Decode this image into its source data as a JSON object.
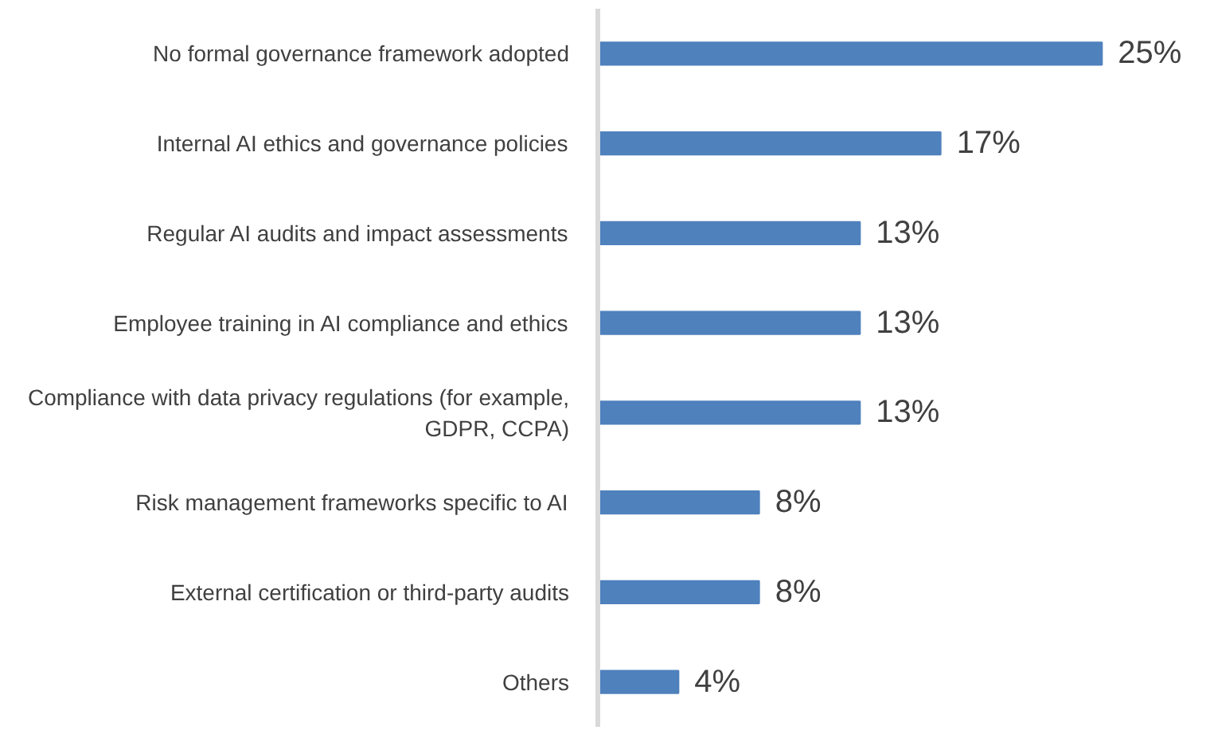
{
  "chart_data": {
    "type": "bar",
    "orientation": "horizontal",
    "categories": [
      "No formal governance framework adopted",
      "Internal AI ethics and governance policies",
      "Regular AI audits and impact assessments",
      "Employee training in AI compliance and ethics",
      "Compliance with data privacy regulations (for example, GDPR, CCPA)",
      "Risk management frameworks specific to AI",
      "External certification or third-party audits",
      "Others"
    ],
    "values": [
      25,
      17,
      13,
      13,
      13,
      8,
      8,
      4
    ],
    "value_labels": [
      "25%",
      "17%",
      "13%",
      "13%",
      "13%",
      "8%",
      "8%",
      "4%"
    ],
    "color": "#4f81bd",
    "grid": false
  }
}
